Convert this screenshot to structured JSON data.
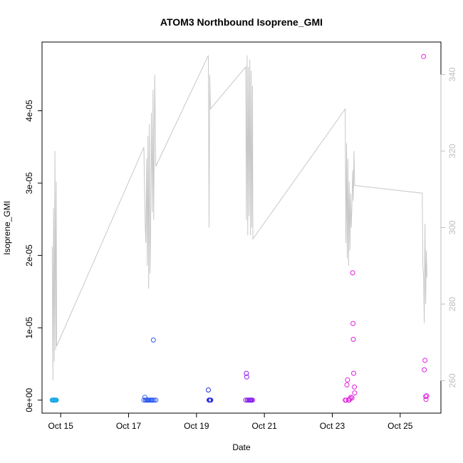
{
  "chart_data": {
    "type": "scatter",
    "title": "ATOM3 Northbound Isoprene_GMI",
    "xlabel": "Date",
    "ylabel": "Isoprene_GMI",
    "x_ticks": [
      "Oct 15",
      "Oct 17",
      "Oct 19",
      "Oct 21",
      "Oct 23",
      "Oct 25"
    ],
    "x_tick_values": [
      15,
      17,
      19,
      21,
      23,
      25
    ],
    "xlim": [
      14.45,
      26.2
    ],
    "y_ticks": [
      "0e+00",
      "1e-05",
      "2e-05",
      "3e-05",
      "4e-05"
    ],
    "y_tick_values": [
      0,
      1e-05,
      2e-05,
      3e-05,
      4e-05
    ],
    "ylim": [
      -1.8e-06,
      4.95e-05
    ],
    "y2_ticks": [
      "260",
      "280",
      "300",
      "320",
      "340"
    ],
    "y2_tick_values": [
      260,
      280,
      300,
      320,
      340
    ],
    "y2lim": [
      251.5,
      348.5
    ],
    "grid": false,
    "line_color": "#c8c8c8",
    "secondary_line": [
      [
        14.75,
        295
      ],
      [
        14.77,
        260
      ],
      [
        14.79,
        305
      ],
      [
        14.81,
        265
      ],
      [
        14.83,
        320
      ],
      [
        14.85,
        268
      ],
      [
        14.87,
        312
      ],
      [
        14.88,
        269
      ],
      [
        17.45,
        321
      ],
      [
        17.47,
        310
      ],
      [
        17.49,
        300
      ],
      [
        17.51,
        296
      ],
      [
        17.53,
        318
      ],
      [
        17.55,
        290
      ],
      [
        17.57,
        324
      ],
      [
        17.59,
        284
      ],
      [
        17.61,
        327
      ],
      [
        17.63,
        288
      ],
      [
        17.65,
        300
      ],
      [
        17.67,
        330
      ],
      [
        17.7,
        304
      ],
      [
        17.72,
        336
      ],
      [
        17.74,
        302
      ],
      [
        17.77,
        340
      ],
      [
        17.8,
        316
      ],
      [
        19.35,
        345
      ],
      [
        19.37,
        300
      ],
      [
        19.39,
        340
      ],
      [
        19.41,
        331
      ],
      [
        20.45,
        342
      ],
      [
        20.47,
        302
      ],
      [
        20.49,
        345
      ],
      [
        20.51,
        298
      ],
      [
        20.53,
        342
      ],
      [
        20.55,
        303
      ],
      [
        20.57,
        344
      ],
      [
        20.59,
        298
      ],
      [
        20.61,
        341
      ],
      [
        20.63,
        300
      ],
      [
        20.65,
        337
      ],
      [
        20.66,
        297
      ],
      [
        23.38,
        331
      ],
      [
        23.4,
        296
      ],
      [
        23.42,
        322
      ],
      [
        23.44,
        292
      ],
      [
        23.46,
        318
      ],
      [
        23.48,
        290
      ],
      [
        23.5,
        312
      ],
      [
        23.52,
        294
      ],
      [
        23.54,
        309
      ],
      [
        23.56,
        300
      ],
      [
        23.58,
        306
      ],
      [
        23.6,
        315
      ],
      [
        23.62,
        307
      ],
      [
        23.64,
        320
      ],
      [
        23.66,
        311
      ],
      [
        25.65,
        309
      ],
      [
        25.67,
        290
      ],
      [
        25.69,
        287
      ],
      [
        25.71,
        275
      ],
      [
        25.73,
        301
      ],
      [
        25.75,
        280
      ],
      [
        25.77,
        294
      ],
      [
        25.79,
        287
      ]
    ],
    "series": [
      {
        "color": "#17a7e6",
        "points": [
          [
            14.75,
            0
          ],
          [
            14.77,
            0
          ],
          [
            14.79,
            0
          ],
          [
            14.81,
            0
          ],
          [
            14.83,
            0
          ],
          [
            14.85,
            0
          ],
          [
            14.87,
            0
          ]
        ]
      },
      {
        "color": "#2f5bf0",
        "points": [
          [
            17.45,
            0
          ],
          [
            17.48,
            4e-07
          ],
          [
            17.5,
            0
          ],
          [
            17.53,
            0
          ],
          [
            17.56,
            0
          ],
          [
            17.58,
            0
          ],
          [
            17.6,
            0
          ],
          [
            17.63,
            0
          ],
          [
            17.66,
            0
          ],
          [
            17.68,
            0
          ],
          [
            17.71,
            0
          ],
          [
            17.73,
            8.3e-06
          ],
          [
            17.75,
            0
          ],
          [
            17.8,
            0
          ]
        ]
      },
      {
        "color": "#2b2be0",
        "points": [
          [
            19.35,
            1.4e-06
          ],
          [
            19.37,
            0
          ],
          [
            19.38,
            0
          ],
          [
            19.4,
            0
          ],
          [
            19.42,
            0
          ]
        ]
      },
      {
        "color": "#8a20e8",
        "points": [
          [
            20.45,
            0
          ],
          [
            20.47,
            3.7e-06
          ],
          [
            20.48,
            3.2e-06
          ],
          [
            20.5,
            0
          ],
          [
            20.53,
            0
          ],
          [
            20.56,
            0
          ],
          [
            20.58,
            0
          ],
          [
            20.6,
            0
          ],
          [
            20.62,
            0
          ],
          [
            20.65,
            0
          ]
        ]
      },
      {
        "color": "#e020e0",
        "points": [
          [
            23.38,
            0
          ],
          [
            23.41,
            0
          ],
          [
            23.43,
            2.1e-06
          ],
          [
            23.45,
            2.8e-06
          ],
          [
            23.48,
            0
          ],
          [
            23.5,
            0
          ],
          [
            23.52,
            2e-07
          ],
          [
            23.55,
            4e-07
          ],
          [
            23.58,
            3e-07
          ],
          [
            23.6,
            1.76e-05
          ],
          [
            23.61,
            1.06e-05
          ],
          [
            23.62,
            8.4e-06
          ],
          [
            23.63,
            3.7e-06
          ],
          [
            23.65,
            1.8e-06
          ],
          [
            23.66,
            1e-06
          ],
          [
            25.69,
            4.75e-05
          ],
          [
            25.71,
            4.2e-06
          ],
          [
            25.73,
            5.5e-06
          ],
          [
            25.75,
            5e-07
          ],
          [
            25.76,
            1e-07
          ],
          [
            25.78,
            6e-07
          ]
        ]
      }
    ]
  }
}
